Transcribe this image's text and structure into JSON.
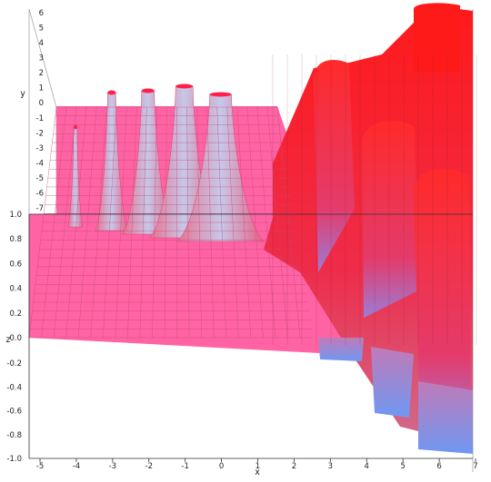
{
  "chart_data": {
    "type": "surface",
    "title": "",
    "xlabel": "x",
    "ylabel": "y",
    "zlabel": "z",
    "x_ticks": [
      "-5",
      "-4",
      "-3",
      "-2",
      "-1",
      "0",
      "1",
      "2",
      "3",
      "4",
      "5",
      "6",
      "7"
    ],
    "y_ticks": [
      "6",
      "5",
      "4",
      "3",
      "2",
      "1",
      "0",
      "-1",
      "-2",
      "-3",
      "-4",
      "-5",
      "-6",
      "-7"
    ],
    "z_ticks_upper": [
      "1.0",
      "0.8",
      "0.6",
      "0.4",
      "0.2",
      "0.0"
    ],
    "z_ticks_lower": [
      "-0.2",
      "-0.4",
      "-0.6",
      "-0.8",
      "-1.0"
    ],
    "xlim": [
      -5,
      7
    ],
    "ylim": [
      -7,
      6
    ],
    "zlim": [
      -1,
      1
    ],
    "grid": true,
    "colors": {
      "surface_low": "#ff5fa2",
      "surface_high": "#ff1010",
      "surface_under": "#7fa0f0",
      "mesh": "#c24a7a"
    },
    "peaks_x": [
      -4,
      -3,
      -2,
      -1,
      0
    ],
    "cylinders_x": [
      3,
      4,
      5,
      6
    ]
  }
}
